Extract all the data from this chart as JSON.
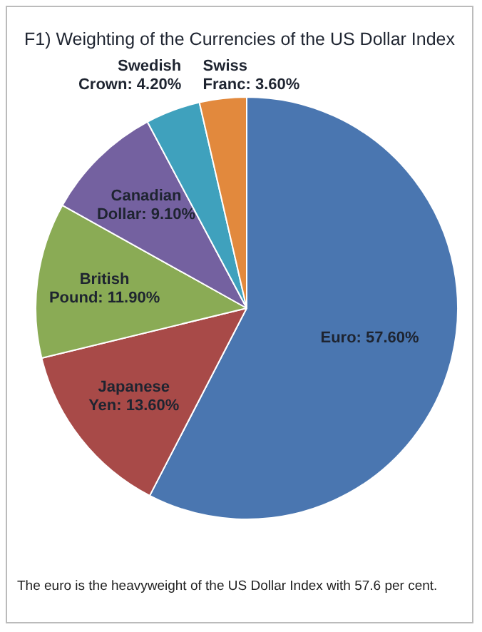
{
  "chart_data": {
    "type": "pie",
    "title": "F1) Weighting of the Currencies of the US Dollar Index",
    "categories": [
      "Euro",
      "Japanese Yen",
      "British Pound",
      "Canadian Dollar",
      "Swedish Crown",
      "Swiss Franc"
    ],
    "values": [
      57.6,
      13.6,
      11.9,
      9.1,
      4.2,
      3.6
    ],
    "value_labels": [
      "57.60%",
      "13.60%",
      "11.90%",
      "9.10%",
      "4.20%",
      "3.60%"
    ],
    "colors": [
      "#4a76b0",
      "#a84a48",
      "#8aab55",
      "#7461a0",
      "#3fa1bd",
      "#e2893d"
    ],
    "annotations": [
      "The euro is the heavyweight of the US Dollar Index with 57.6 per cent."
    ],
    "legend": false
  }
}
